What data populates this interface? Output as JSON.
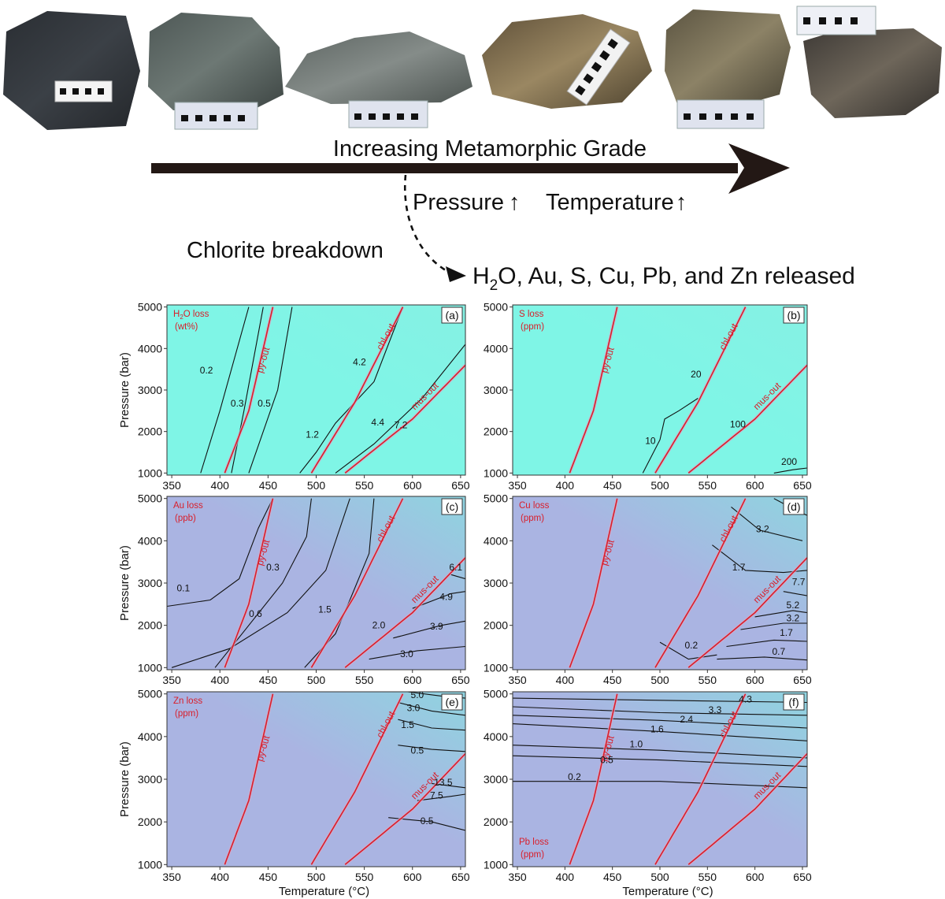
{
  "header": {
    "grade_label": "Increasing Metamorphic Grade",
    "pressure_label": "Pressure",
    "temperature_label": "Temperature",
    "up_arrow": "↑",
    "chlorite_label": "Chlorite breakdown",
    "released_pre": "H",
    "released_sub": "2",
    "released_post": "O, Au, S, Cu, Pb, and Zn released"
  },
  "rocks": [
    {
      "color": "#34383d"
    },
    {
      "color": "#5c6663"
    },
    {
      "color": "#6d7572"
    },
    {
      "color": "#7a6a4c"
    },
    {
      "color": "#6e654f"
    },
    {
      "color": "#4f4a45"
    }
  ],
  "colors": {
    "cyan_bg": "#7ff5e6",
    "violet_bg": "#aab4e2",
    "red_line": "#d91e2a",
    "contour": "#111111"
  },
  "axes": {
    "x_label": "Temperature (°C)",
    "y_label": "Pressure (bar)",
    "x_ticks": [
      "350",
      "400",
      "450",
      "500",
      "550",
      "600",
      "650"
    ],
    "y_ticks": [
      "1000",
      "2000",
      "3000",
      "4000",
      "5000"
    ]
  },
  "panels": [
    {
      "id": "a",
      "letter": "(a)",
      "title1": "H",
      "title1_sub": "2",
      "title1_post": "O loss",
      "title2": "(wt%)",
      "bg": "cyan",
      "reaction_labels": [
        "py-out",
        "chl-out",
        "mus-out"
      ],
      "contour_labels": [
        "0.2",
        "0.3",
        "0.5",
        "1.2",
        "4.2",
        "4.4",
        "7.2"
      ]
    },
    {
      "id": "b",
      "letter": "(b)",
      "title1": "S loss",
      "title2": "(ppm)",
      "bg": "cyan",
      "reaction_labels": [
        "py-out",
        "chl-out",
        "mus-out"
      ],
      "contour_labels": [
        "10",
        "20",
        "100",
        "200"
      ]
    },
    {
      "id": "c",
      "letter": "(c)",
      "title1": "Au loss",
      "title2": "(ppb)",
      "bg": "violet",
      "reaction_labels": [
        "py-out",
        "chl-out",
        "mus-out"
      ],
      "contour_labels": [
        "0.1",
        "0.3",
        "0.6",
        "1.5",
        "2.0",
        "6.1",
        "4.9",
        "3.9",
        "3.0"
      ]
    },
    {
      "id": "d",
      "letter": "(d)",
      "title1": "Cu loss",
      "title2": "(ppm)",
      "bg": "violet",
      "reaction_labels": [
        "py-out",
        "chl-out",
        "mus-out"
      ],
      "contour_labels": [
        "5.2",
        "3.2",
        "1.7",
        "7.7",
        "5.2",
        "3.2",
        "1.7",
        "0.7",
        "0.2"
      ]
    },
    {
      "id": "e",
      "letter": "(e)",
      "title1": "Zn loss",
      "title2": "(ppm)",
      "bg": "violet",
      "reaction_labels": [
        "py-out",
        "chl-out",
        "mus-out"
      ],
      "contour_labels": [
        "5.0",
        "3.0",
        "1.5",
        "0.5",
        "13.5",
        "7.5",
        "0.5"
      ]
    },
    {
      "id": "f",
      "letter": "(f)",
      "title1": "Pb loss",
      "title2": "(ppm)",
      "bg": "violet",
      "reaction_labels": [
        "py-out",
        "chl-out",
        "mus-out"
      ],
      "contour_labels": [
        "4.3",
        "3.3",
        "2.4",
        "1.6",
        "1.0",
        "0.5",
        "0.2"
      ]
    }
  ]
}
